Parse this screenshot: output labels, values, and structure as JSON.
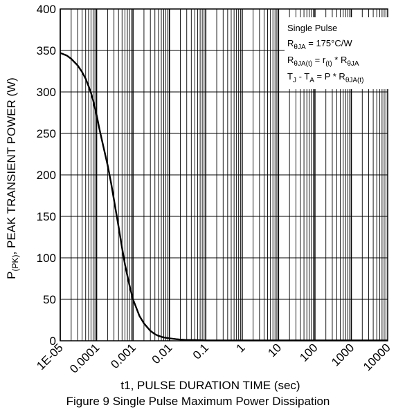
{
  "caption": "Figure 9 Single Pulse Maximum Power Dissipation",
  "chart_data": {
    "type": "line",
    "title": "",
    "xlabel": "t1, PULSE DURATION TIME (sec)",
    "ylabel_main": "P",
    "ylabel_sub": "(PK)",
    "ylabel_rest": ", PEAK TRANSIENT POWER (W)",
    "x_scale": "log",
    "xlim": [
      1e-05,
      10000
    ],
    "ylim": [
      0,
      400
    ],
    "grid": true,
    "x_ticks": [
      {
        "value": 1e-05,
        "label": "1E-05"
      },
      {
        "value": 0.0001,
        "label": "0.0001"
      },
      {
        "value": 0.001,
        "label": "0.001"
      },
      {
        "value": 0.01,
        "label": "0.01"
      },
      {
        "value": 0.1,
        "label": "0.1"
      },
      {
        "value": 1,
        "label": "1"
      },
      {
        "value": 10,
        "label": "10"
      },
      {
        "value": 100,
        "label": "100"
      },
      {
        "value": 1000,
        "label": "1000"
      },
      {
        "value": 10000,
        "label": "10000"
      }
    ],
    "y_ticks": [
      {
        "value": 0,
        "label": "0"
      },
      {
        "value": 50,
        "label": "50"
      },
      {
        "value": 100,
        "label": "100"
      },
      {
        "value": 150,
        "label": "150"
      },
      {
        "value": 200,
        "label": "200"
      },
      {
        "value": 250,
        "label": "250"
      },
      {
        "value": 300,
        "label": "300"
      },
      {
        "value": 350,
        "label": "350"
      },
      {
        "value": 400,
        "label": "400"
      }
    ],
    "series": [
      {
        "x": [
          1e-05,
          1.5e-05,
          2e-05,
          3e-05,
          4e-05,
          5e-05,
          6e-05,
          7e-05,
          8e-05,
          0.0001,
          0.00012,
          0.00015,
          0.0002,
          0.00025,
          0.0003,
          0.0004,
          0.0005,
          0.0006,
          0.0008,
          0.001,
          0.0015,
          0.002,
          0.003,
          0.004,
          0.005,
          0.007,
          0.01,
          0.015,
          0.02,
          0.03,
          0.05,
          0.1,
          1,
          10,
          100,
          1000,
          10000
        ],
        "y": [
          347,
          344,
          340,
          332,
          324,
          316,
          307,
          299,
          290,
          272,
          255,
          236,
          212,
          190,
          170,
          138,
          112,
          92,
          67,
          50,
          30,
          21,
          12,
          8,
          6,
          4,
          3,
          2,
          1.5,
          1,
          1,
          0.5,
          0.5,
          0.5,
          0.5,
          0.5,
          0.5
        ]
      }
    ],
    "annotation": {
      "line1": "Single Pulse",
      "line2": {
        "a": "R",
        "a_sub": "θJA",
        "b": " = 175°C/W"
      },
      "line3": {
        "a": "R",
        "a_sub": "θJA(t)",
        "b": " = r",
        "b_sub": "(t)",
        "c": " * R",
        "c_sub": "θJA"
      },
      "line4": {
        "a": "T",
        "a_sub": "J",
        "b": " - T",
        "b_sub": "A",
        "c": " = P * R",
        "c_sub": "θJA(t)"
      }
    }
  }
}
